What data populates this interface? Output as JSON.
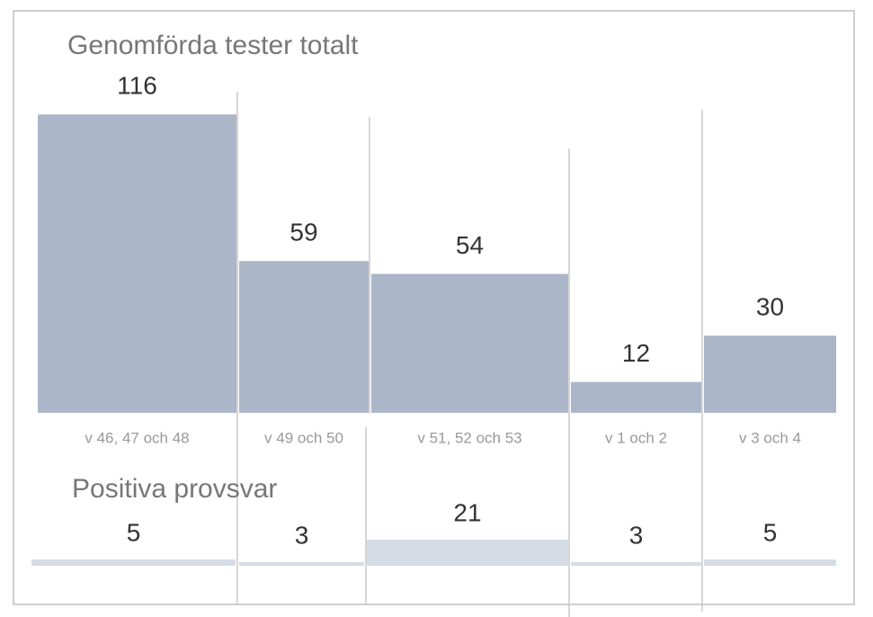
{
  "chart_data": [
    {
      "type": "bar",
      "title": "Genomförda tester totalt",
      "categories": [
        "v 46, 47 och 48",
        "v 49 och 50",
        "v 51, 52 och 53",
        "v 1 och 2",
        "v 3 och 4"
      ],
      "values": [
        116,
        59,
        54,
        12,
        30
      ],
      "color": "#abb6c9"
    },
    {
      "type": "bar",
      "title": "Positiva provsvar",
      "values": [
        5,
        3,
        21,
        3,
        5
      ],
      "color": "#d5dce6"
    }
  ]
}
